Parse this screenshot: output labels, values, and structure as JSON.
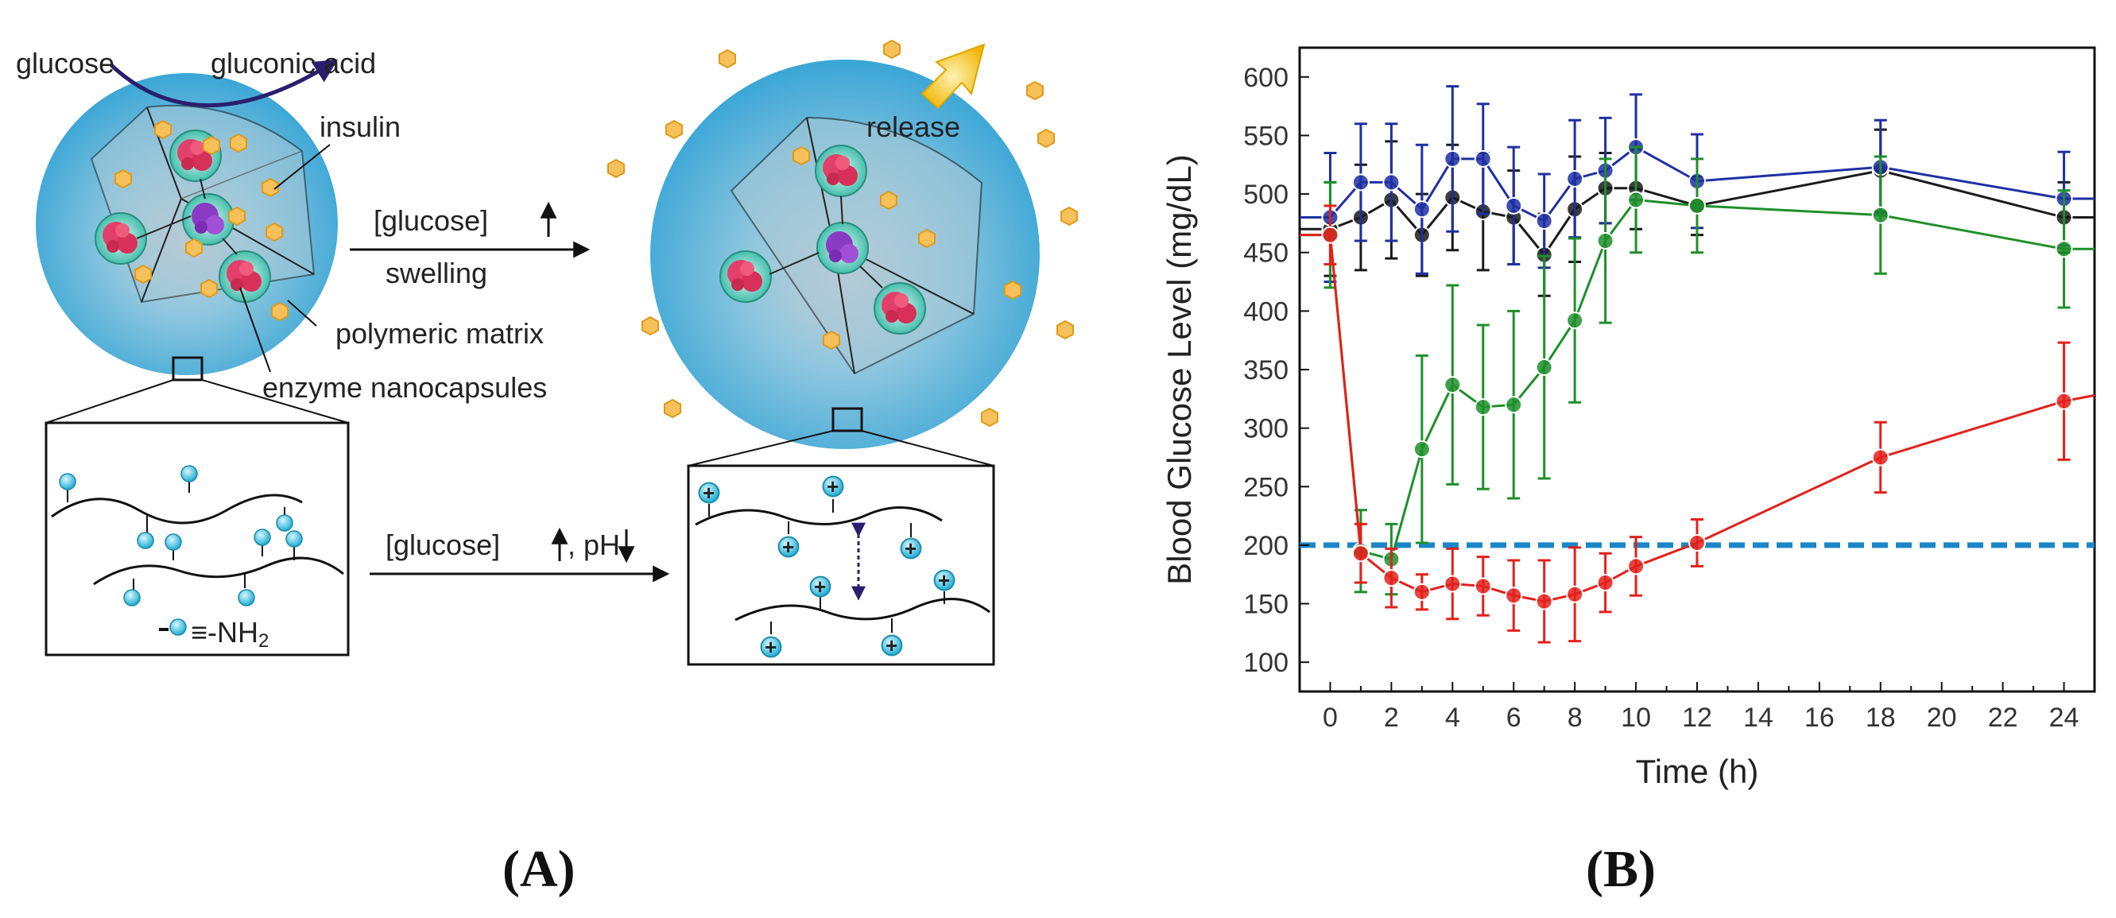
{
  "panel_a": {
    "label_glucose": "glucose",
    "label_gluconic": "gluconic acid",
    "label_insulin": "insulin",
    "label_release": "release",
    "label_glucose_up": "[glucose]",
    "label_swelling": "swelling",
    "label_matrix": "polymeric matrix",
    "label_nanocaps": "enzyme nanocapsules",
    "label_glucose_ph": "[glucose]",
    "label_ph": ", pH",
    "label_amine": "≡-NH",
    "label_amine_sub": "2",
    "plus_sign": "+",
    "caption": "(A)"
  },
  "panel_b": {
    "caption": "(B)"
  },
  "colors": {
    "sphere": "#4aaed8",
    "insulin": "#f3b53c",
    "black_series": "#1a1a1a",
    "blue_series": "#1f2fa3",
    "green_series": "#1f8f2a",
    "red_series": "#e3211c",
    "threshold": "#1a86c8"
  },
  "chart_data": {
    "type": "line",
    "title": "",
    "xlabel": "Time (h)",
    "ylabel": "Blood Glucose Level (mg/dL)",
    "xlim": [
      -1,
      25
    ],
    "ylim": [
      75,
      625
    ],
    "xticks": [
      0,
      2,
      4,
      6,
      8,
      10,
      12,
      14,
      16,
      18,
      20,
      22,
      24
    ],
    "yticks": [
      100,
      150,
      200,
      250,
      300,
      350,
      400,
      450,
      500,
      550,
      600
    ],
    "threshold": 200,
    "series": [
      {
        "name": "black",
        "color": "#1a1a1a",
        "x": [
          -1,
          0,
          1,
          2,
          3,
          4,
          5,
          6,
          7,
          8,
          9,
          10,
          12,
          18,
          24,
          25
        ],
        "y": [
          470,
          470,
          480,
          495,
          465,
          497,
          485,
          480,
          448,
          487,
          505,
          505,
          490,
          520,
          480,
          480
        ],
        "err": [
          null,
          40,
          45,
          50,
          35,
          45,
          50,
          40,
          35,
          45,
          30,
          35,
          25,
          35,
          30,
          null
        ]
      },
      {
        "name": "blue",
        "color": "#1f2fa3",
        "x": [
          -1,
          0,
          1,
          2,
          3,
          4,
          5,
          6,
          7,
          8,
          9,
          10,
          12,
          18,
          24,
          25
        ],
        "y": [
          480,
          480,
          510,
          510,
          487,
          530,
          530,
          490,
          477,
          513,
          520,
          540,
          511,
          523,
          496,
          496
        ],
        "err": [
          null,
          55,
          50,
          50,
          55,
          62,
          47,
          50,
          40,
          50,
          45,
          45,
          40,
          40,
          40,
          null
        ]
      },
      {
        "name": "green",
        "color": "#1f8f2a",
        "x": [
          -1,
          0,
          1,
          2,
          3,
          4,
          5,
          6,
          7,
          8,
          9,
          10,
          12,
          18,
          24,
          25
        ],
        "y": [
          465,
          465,
          195,
          188,
          282,
          337,
          318,
          320,
          352,
          392,
          460,
          495,
          490,
          482,
          453,
          453
        ],
        "err": [
          null,
          45,
          35,
          30,
          80,
          85,
          70,
          80,
          95,
          70,
          70,
          45,
          40,
          50,
          50,
          null
        ]
      },
      {
        "name": "red",
        "color": "#e3211c",
        "x": [
          -1,
          0,
          1,
          2,
          3,
          4,
          5,
          6,
          7,
          8,
          9,
          10,
          12,
          18,
          24,
          25
        ],
        "y": [
          465,
          465,
          193,
          172,
          160,
          167,
          165,
          157,
          152,
          158,
          168,
          182,
          202,
          275,
          323,
          328
        ],
        "err": [
          null,
          25,
          25,
          25,
          15,
          30,
          25,
          30,
          35,
          40,
          25,
          25,
          20,
          30,
          50,
          null
        ]
      }
    ]
  }
}
